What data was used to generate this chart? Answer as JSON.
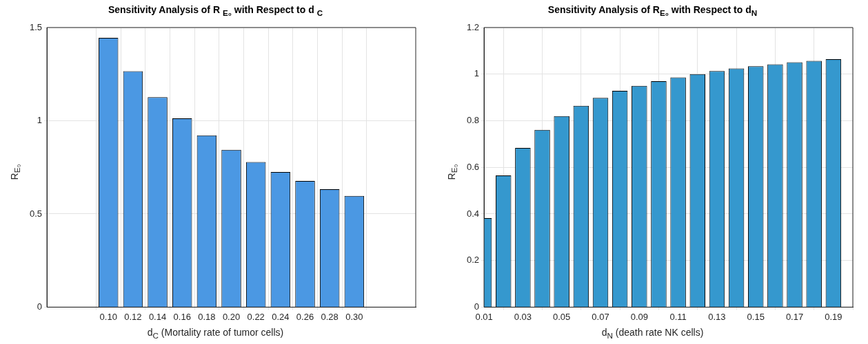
{
  "chart_data": [
    {
      "type": "bar",
      "title": "Sensitivity Analysis of R $_{E₀}$ with Respect to d $_{C}$",
      "xlabel": "d$_{C}$ (Mortality rate of tumor cells)",
      "ylabel": "R$_{E₀}$",
      "x": [
        0.1,
        0.12,
        0.14,
        0.16,
        0.18,
        0.2,
        0.22,
        0.24,
        0.26,
        0.28,
        0.3
      ],
      "values": [
        1.445,
        1.266,
        1.126,
        1.013,
        0.921,
        0.844,
        0.778,
        0.725,
        0.677,
        0.633,
        0.597
      ],
      "color": "#4b98e3",
      "xlim": [
        0.05,
        0.35
      ],
      "xticks": [
        {
          "value": 0.1,
          "label": "0.10"
        },
        {
          "value": 0.12,
          "label": "0.12"
        },
        {
          "value": 0.14,
          "label": "0.14"
        },
        {
          "value": 0.16,
          "label": "0.16"
        },
        {
          "value": 0.18,
          "label": "0.18"
        },
        {
          "value": 0.2,
          "label": "0.20"
        },
        {
          "value": 0.22,
          "label": "0.22"
        },
        {
          "value": 0.24,
          "label": "0.24"
        },
        {
          "value": 0.26,
          "label": "0.26"
        },
        {
          "value": 0.28,
          "label": "0.28"
        },
        {
          "value": 0.3,
          "label": "0.30"
        }
      ],
      "ylim": [
        0,
        1.5
      ],
      "yticks": [
        0,
        0.5,
        1,
        1.5
      ],
      "grid": true
    },
    {
      "type": "bar",
      "title": "Sensitivity Analysis of R$_{E₀}$ with Respect to d$_{N}$",
      "xlabel": "d$_{N}$ (death rate NK cells)",
      "ylabel": "R$_{E₀}$",
      "x": [
        0.01,
        0.02,
        0.03,
        0.04,
        0.05,
        0.06,
        0.07,
        0.08,
        0.09,
        0.1,
        0.11,
        0.12,
        0.13,
        0.14,
        0.15,
        0.16,
        0.17,
        0.18,
        0.19
      ],
      "values": [
        0.382,
        0.565,
        0.683,
        0.761,
        0.82,
        0.864,
        0.898,
        0.928,
        0.95,
        0.97,
        0.986,
        1.0,
        1.013,
        1.024,
        1.034,
        1.042,
        1.051,
        1.057,
        1.064
      ],
      "color": "#3598ce",
      "xlim": [
        0.01,
        0.2
      ],
      "xticks": [
        0.01,
        0.03,
        0.05,
        0.07,
        0.09,
        0.11,
        0.13,
        0.15,
        0.17,
        0.19
      ],
      "ylim": [
        0,
        1.2
      ],
      "yticks": [
        0,
        0.2,
        0.4,
        0.6,
        0.8,
        1,
        1.2
      ],
      "grid": true
    }
  ]
}
